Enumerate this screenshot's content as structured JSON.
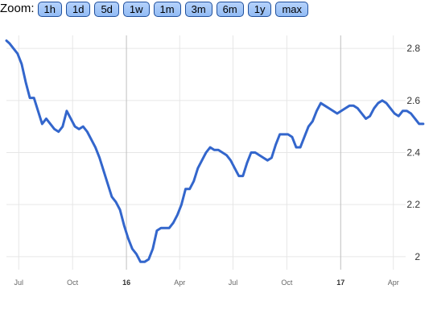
{
  "zoom": {
    "label": "Zoom:",
    "buttons": [
      "1h",
      "1d",
      "5d",
      "1w",
      "1m",
      "3m",
      "6m",
      "1y",
      "max"
    ]
  },
  "colors": {
    "line": "#3366cc",
    "grid": "#e6e6e6",
    "year_divider": "#bfbfbf",
    "axis_text": "#333333",
    "tick_text": "#666666",
    "button_fill": "#9fc5f8",
    "button_border": "#1f4f9c"
  },
  "chart_data": {
    "type": "line",
    "title": "",
    "xlabel": "",
    "ylabel": "",
    "ylim": [
      1.95,
      2.85
    ],
    "xlim": [
      "2015-06-10",
      "2017-05-25"
    ],
    "y_ticks": [
      2.8,
      2.6,
      2.4,
      2.2,
      2
    ],
    "y_tick_labels": [
      "2.8",
      "2.6",
      "2.4",
      "2.2",
      "2"
    ],
    "x_ticks": [
      {
        "date": "2015-07-01",
        "label": "Jul",
        "bold": false
      },
      {
        "date": "2015-10-01",
        "label": "Oct",
        "bold": false
      },
      {
        "date": "2016-01-01",
        "label": "16",
        "bold": true
      },
      {
        "date": "2016-04-01",
        "label": "Apr",
        "bold": false
      },
      {
        "date": "2016-07-01",
        "label": "Jul",
        "bold": false
      },
      {
        "date": "2016-10-01",
        "label": "Oct",
        "bold": false
      },
      {
        "date": "2017-01-01",
        "label": "17",
        "bold": true
      },
      {
        "date": "2017-04-01",
        "label": "Apr",
        "bold": false
      }
    ],
    "year_dividers": [
      "2016-01-01",
      "2017-01-01"
    ],
    "grid": true,
    "legend": "none",
    "series": [
      {
        "x": [
          "2015-06-10",
          "2015-06-15",
          "2015-06-22",
          "2015-06-29",
          "2015-07-06",
          "2015-07-13",
          "2015-07-20",
          "2015-07-27",
          "2015-08-03",
          "2015-08-10",
          "2015-08-17",
          "2015-08-24",
          "2015-08-31",
          "2015-09-07",
          "2015-09-14",
          "2015-09-21",
          "2015-09-28",
          "2015-10-05",
          "2015-10-12",
          "2015-10-19",
          "2015-10-26",
          "2015-11-02",
          "2015-11-09",
          "2015-11-16",
          "2015-11-23",
          "2015-11-30",
          "2015-12-07",
          "2015-12-14",
          "2015-12-21",
          "2015-12-28",
          "2016-01-04",
          "2016-01-11",
          "2016-01-18",
          "2016-01-25",
          "2016-02-01",
          "2016-02-08",
          "2016-02-15",
          "2016-02-22",
          "2016-02-29",
          "2016-03-07",
          "2016-03-14",
          "2016-03-21",
          "2016-03-28",
          "2016-04-04",
          "2016-04-11",
          "2016-04-18",
          "2016-04-25",
          "2016-05-02",
          "2016-05-09",
          "2016-05-16",
          "2016-05-23",
          "2016-05-30",
          "2016-06-06",
          "2016-06-13",
          "2016-06-20",
          "2016-06-27",
          "2016-07-04",
          "2016-07-11",
          "2016-07-18",
          "2016-07-25",
          "2016-08-01",
          "2016-08-08",
          "2016-08-15",
          "2016-08-22",
          "2016-08-29",
          "2016-09-05",
          "2016-09-12",
          "2016-09-19",
          "2016-09-26",
          "2016-10-03",
          "2016-10-10",
          "2016-10-17",
          "2016-10-24",
          "2016-10-31",
          "2016-11-07",
          "2016-11-14",
          "2016-11-21",
          "2016-11-28",
          "2016-12-05",
          "2016-12-12",
          "2016-12-19",
          "2016-12-26",
          "2017-01-02",
          "2017-01-09",
          "2017-01-16",
          "2017-01-23",
          "2017-01-30",
          "2017-02-06",
          "2017-02-13",
          "2017-02-20",
          "2017-02-27",
          "2017-03-06",
          "2017-03-13",
          "2017-03-20",
          "2017-03-27",
          "2017-04-03",
          "2017-04-10",
          "2017-04-17",
          "2017-04-24",
          "2017-05-01",
          "2017-05-08",
          "2017-05-15",
          "2017-05-22"
        ],
        "y": [
          2.83,
          2.82,
          2.8,
          2.78,
          2.74,
          2.67,
          2.61,
          2.61,
          2.56,
          2.51,
          2.53,
          2.51,
          2.49,
          2.48,
          2.5,
          2.56,
          2.53,
          2.5,
          2.49,
          2.5,
          2.48,
          2.45,
          2.42,
          2.38,
          2.33,
          2.28,
          2.23,
          2.21,
          2.18,
          2.12,
          2.07,
          2.03,
          2.01,
          1.98,
          1.98,
          1.99,
          2.03,
          2.1,
          2.11,
          2.11,
          2.11,
          2.13,
          2.16,
          2.2,
          2.26,
          2.26,
          2.29,
          2.34,
          2.37,
          2.4,
          2.42,
          2.41,
          2.41,
          2.4,
          2.39,
          2.37,
          2.34,
          2.31,
          2.31,
          2.36,
          2.4,
          2.4,
          2.39,
          2.38,
          2.37,
          2.38,
          2.43,
          2.47,
          2.47,
          2.47,
          2.46,
          2.42,
          2.42,
          2.46,
          2.5,
          2.52,
          2.56,
          2.59,
          2.58,
          2.57,
          2.56,
          2.55,
          2.56,
          2.57,
          2.58,
          2.58,
          2.57,
          2.55,
          2.53,
          2.54,
          2.57,
          2.59,
          2.6,
          2.59,
          2.57,
          2.55,
          2.54,
          2.56,
          2.56,
          2.55,
          2.53,
          2.51,
          2.51
        ]
      }
    ]
  }
}
